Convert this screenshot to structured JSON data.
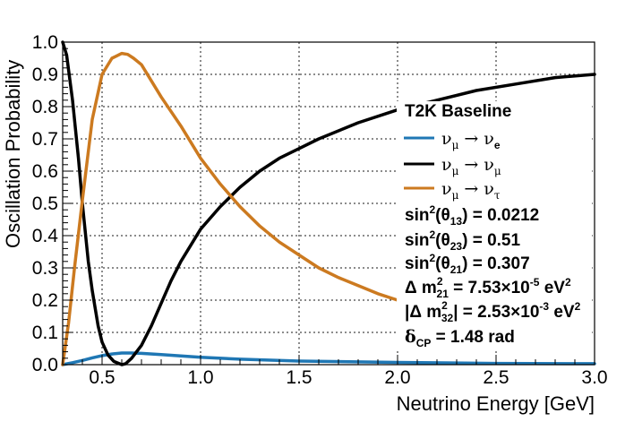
{
  "chart_data": {
    "type": "line",
    "title": "",
    "xlabel": "Neutrino Energy [GeV]",
    "ylabel": "Oscillation Probability",
    "xlim": [
      0.3,
      3.0
    ],
    "ylim": [
      0.0,
      1.0
    ],
    "xticks": [
      "0.5",
      "1.0",
      "1.5",
      "2.0",
      "2.5",
      "3.0"
    ],
    "yticks": [
      "0.0",
      "0.1",
      "0.2",
      "0.3",
      "0.4",
      "0.5",
      "0.6",
      "0.7",
      "0.8",
      "0.9",
      "1.0"
    ],
    "grid": true,
    "legend_position": "right",
    "legend_title": "T2K Baseline",
    "series": [
      {
        "key": "mu_e",
        "color": "#1f77b4",
        "x": [
          0.3,
          0.35,
          0.4,
          0.45,
          0.5,
          0.55,
          0.6,
          0.65,
          0.7,
          0.8,
          0.9,
          1.0,
          1.2,
          1.5,
          2.0,
          2.5,
          3.0
        ],
        "y": [
          0.0,
          0.006,
          0.013,
          0.021,
          0.028,
          0.033,
          0.036,
          0.036,
          0.035,
          0.031,
          0.027,
          0.023,
          0.017,
          0.011,
          0.007,
          0.004,
          0.003
        ]
      },
      {
        "key": "mu_mu",
        "color": "#000000",
        "x": [
          0.3,
          0.32,
          0.35,
          0.38,
          0.4,
          0.43,
          0.45,
          0.48,
          0.5,
          0.53,
          0.56,
          0.6,
          0.62,
          0.65,
          0.7,
          0.75,
          0.8,
          0.85,
          0.9,
          1.0,
          1.1,
          1.2,
          1.3,
          1.4,
          1.5,
          1.6,
          1.8,
          2.0,
          2.2,
          2.4,
          2.6,
          2.8,
          3.0
        ],
        "y": [
          1.0,
          0.96,
          0.82,
          0.64,
          0.5,
          0.32,
          0.23,
          0.12,
          0.07,
          0.03,
          0.01,
          0.0,
          0.003,
          0.02,
          0.06,
          0.12,
          0.19,
          0.26,
          0.32,
          0.42,
          0.49,
          0.55,
          0.6,
          0.64,
          0.67,
          0.7,
          0.75,
          0.79,
          0.82,
          0.85,
          0.87,
          0.89,
          0.9
        ]
      },
      {
        "key": "mu_tau",
        "color": "#cc7a20",
        "x": [
          0.3,
          0.33,
          0.36,
          0.4,
          0.45,
          0.5,
          0.55,
          0.6,
          0.63,
          0.66,
          0.7,
          0.75,
          0.8,
          0.9,
          1.0,
          1.1,
          1.2,
          1.3,
          1.4,
          1.5,
          1.6,
          1.7,
          1.8,
          1.9,
          2.0
        ],
        "y": [
          0.0,
          0.13,
          0.3,
          0.51,
          0.76,
          0.9,
          0.95,
          0.965,
          0.962,
          0.95,
          0.93,
          0.88,
          0.83,
          0.74,
          0.64,
          0.56,
          0.49,
          0.43,
          0.38,
          0.34,
          0.3,
          0.27,
          0.245,
          0.22,
          0.2
        ]
      }
    ]
  },
  "legend": {
    "entries": [
      {
        "key": "mu_e",
        "from": "ν",
        "from_sub": "μ",
        "arrow": "→",
        "to": "ν",
        "to_sub": "e"
      },
      {
        "key": "mu_mu",
        "from": "ν",
        "from_sub": "μ",
        "arrow": "→",
        "to": "ν",
        "to_sub": "μ"
      },
      {
        "key": "mu_tau",
        "from": "ν",
        "from_sub": "μ",
        "arrow": "→",
        "to": "ν",
        "to_sub": "τ"
      }
    ]
  },
  "params": {
    "s13_prefix": "sin",
    "s13_sup": "2",
    "s13_arg": "(θ",
    "s13_sub": "13",
    "s13_value": ") = 0.0212",
    "s23_prefix": "sin",
    "s23_sup": "2",
    "s23_arg": "(θ",
    "s23_sub": "23",
    "s23_value": ") = 0.51",
    "s21_prefix": "sin",
    "s21_sup": "2",
    "s21_arg": "(θ",
    "s21_sub": "21",
    "s21_value": ") = 0.307",
    "dm21_prefix": "Δ m",
    "dm21_sup": "2",
    "dm21_sub": "21",
    "dm21_value": " = 7.53×10",
    "dm21_exp": "-5",
    "dm21_unit": " eV",
    "dm21_unit_sup": "2",
    "dm32_prefix": "|Δ m",
    "dm32_sup": "2",
    "dm32_sub": "32",
    "dm32_value": "| = 2.53×10",
    "dm32_exp": "-3",
    "dm32_unit": " eV",
    "dm32_unit_sup": "2",
    "dcp_prefix": "δ",
    "dcp_sub": "CP",
    "dcp_value": " = 1.48 rad"
  }
}
